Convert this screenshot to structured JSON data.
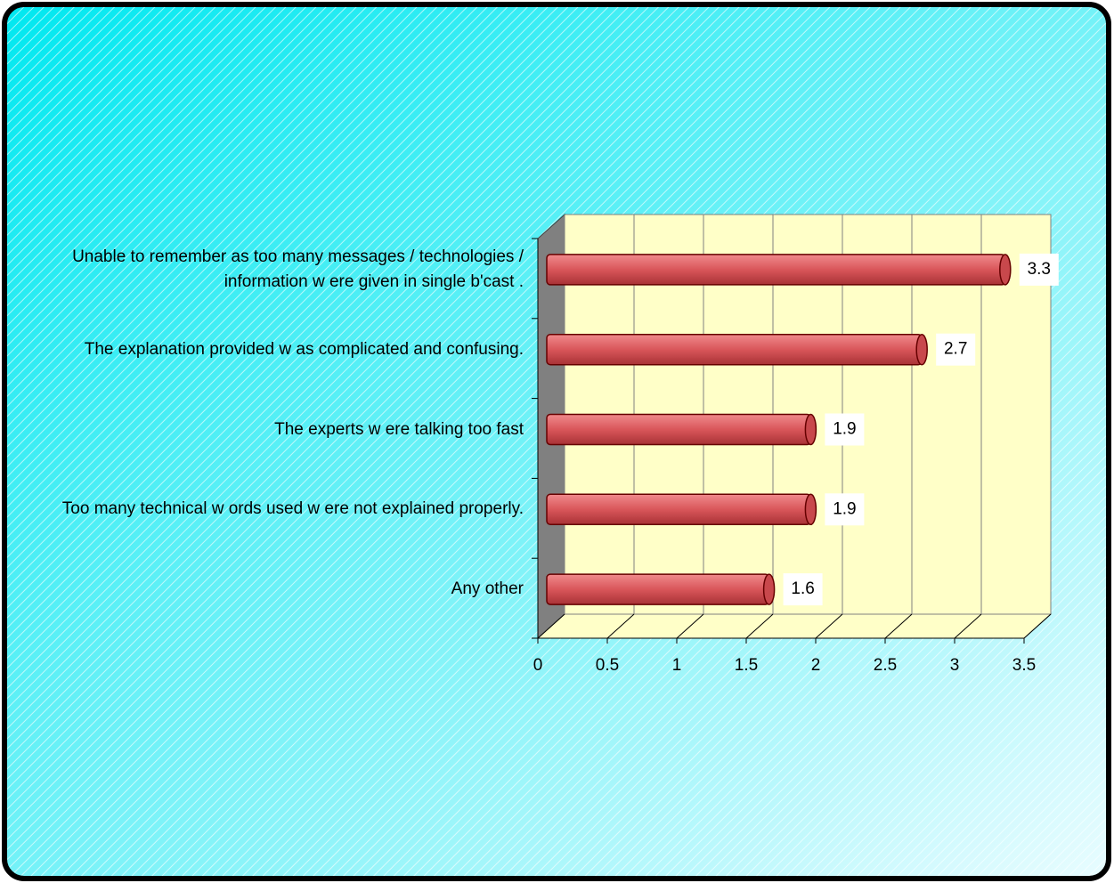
{
  "chart_data": {
    "type": "bar",
    "orientation": "horizontal",
    "categories": [
      "Unable to remember as too many messages / technologies / information w ere given in single b'cast .",
      "The explanation provided w as complicated and confusing.",
      "The experts w ere talking too fast",
      "Too many technical w ords used w ere not explained properly.",
      "Any other"
    ],
    "values": [
      3.3,
      2.7,
      1.9,
      1.9,
      1.6
    ],
    "color": "#d9565a",
    "xlim": [
      0,
      3.5
    ],
    "xticks": [
      0,
      0.5,
      1,
      1.5,
      2,
      2.5,
      3,
      3.5
    ],
    "grid": true
  }
}
